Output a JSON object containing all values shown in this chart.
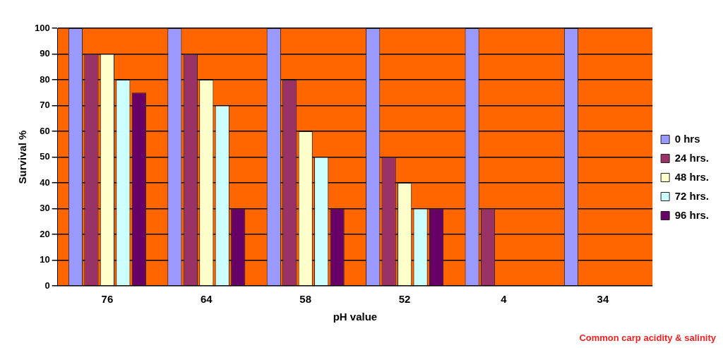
{
  "chart_data": {
    "type": "bar",
    "xlabel": "pH value",
    "ylabel": "Survival %",
    "categories": [
      "76",
      "64",
      "58",
      "52",
      "4",
      "34"
    ],
    "series": [
      {
        "name": "0 hrs",
        "color": "#9999ff",
        "values": [
          100,
          100,
          100,
          100,
          100,
          100
        ]
      },
      {
        "name": "24 hrs.",
        "color": "#993366",
        "values": [
          90,
          90,
          80,
          50,
          30,
          0
        ]
      },
      {
        "name": "48 hrs.",
        "color": "#ffffcc",
        "values": [
          90,
          80,
          60,
          40,
          0,
          0
        ]
      },
      {
        "name": "72 hrs.",
        "color": "#ccffff",
        "values": [
          80,
          70,
          50,
          30,
          0,
          0
        ]
      },
      {
        "name": "96 hrs.",
        "color": "#660066",
        "values": [
          75,
          30,
          30,
          30,
          0,
          0
        ]
      }
    ],
    "ylim": [
      0,
      100
    ],
    "yticks": [
      0,
      10,
      20,
      30,
      40,
      50,
      60,
      70,
      80,
      90,
      100
    ],
    "grid": "y",
    "legend": "right",
    "annotations": [
      "Common carp acidity & salinity"
    ]
  }
}
